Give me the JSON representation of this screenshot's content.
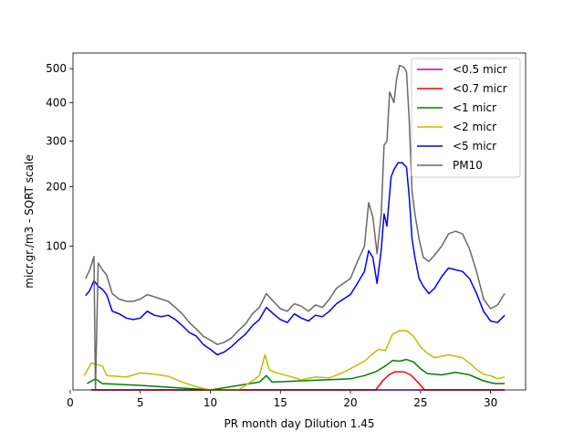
{
  "chart_data": {
    "type": "line",
    "title": "",
    "xlabel": "PR month day  Dilution 1.45",
    "ylabel": "micr.gr./m3 - SQRT scale",
    "y_scale": "sqrt",
    "xlim": [
      0.2,
      32.5
    ],
    "ylim": [
      0,
      550
    ],
    "x_ticks": [
      0,
      5,
      10,
      15,
      20,
      25,
      30
    ],
    "y_ticks": [
      100,
      200,
      300,
      400,
      500
    ],
    "grid": false,
    "legend_position": "top-right",
    "series": [
      {
        "name": "<0.5 micr",
        "color": "#bf00bf",
        "points": [
          [
            1.5,
            0
          ],
          [
            31,
            0
          ]
        ]
      },
      {
        "name": "<0.7 micr",
        "color": "#ff0000",
        "points": [
          [
            1.5,
            0
          ],
          [
            21.8,
            0
          ],
          [
            22.3,
            0.4
          ],
          [
            22.8,
            1.2
          ],
          [
            23.2,
            1.6
          ],
          [
            23.8,
            1.6
          ],
          [
            24.3,
            1.1
          ],
          [
            24.8,
            0.3
          ],
          [
            25.3,
            0
          ],
          [
            31,
            0
          ]
        ]
      },
      {
        "name": "<1 micr",
        "color": "#008000",
        "points": [
          [
            1.2,
            0.2
          ],
          [
            1.8,
            0.6
          ],
          [
            2.3,
            0.2
          ],
          [
            5,
            0.1
          ],
          [
            10,
            0
          ],
          [
            13.5,
            0.3
          ],
          [
            14,
            1
          ],
          [
            14.4,
            0.3
          ],
          [
            20,
            0.6
          ],
          [
            21,
            1
          ],
          [
            21.8,
            1.6
          ],
          [
            22.5,
            2.8
          ],
          [
            23,
            4.2
          ],
          [
            23.5,
            4
          ],
          [
            24,
            4.5
          ],
          [
            24.5,
            3.8
          ],
          [
            25,
            2.2
          ],
          [
            25.5,
            1.3
          ],
          [
            26.5,
            1.1
          ],
          [
            27.5,
            1.5
          ],
          [
            28.5,
            1.1
          ],
          [
            29.5,
            0.4
          ],
          [
            30.3,
            0.2
          ],
          [
            31,
            0.2
          ]
        ]
      },
      {
        "name": "<2 micr",
        "color": "#bfbf00",
        "points": [
          [
            1,
            1
          ],
          [
            1.5,
            3.5
          ],
          [
            2.3,
            2.8
          ],
          [
            2.6,
            1
          ],
          [
            4,
            0.8
          ],
          [
            5,
            1.4
          ],
          [
            6,
            1.2
          ],
          [
            7,
            0.9
          ],
          [
            8,
            0.3
          ],
          [
            9,
            0.05
          ],
          [
            10,
            0
          ],
          [
            11,
            0
          ],
          [
            12,
            0
          ],
          [
            13,
            0.4
          ],
          [
            13.5,
            1
          ],
          [
            13.9,
            6
          ],
          [
            14.2,
            2
          ],
          [
            14.6,
            1.5
          ],
          [
            15.5,
            1
          ],
          [
            16.5,
            0.5
          ],
          [
            17.5,
            0.8
          ],
          [
            18.5,
            0.7
          ],
          [
            19.5,
            1.5
          ],
          [
            20.5,
            3
          ],
          [
            21,
            4
          ],
          [
            21.5,
            6
          ],
          [
            22,
            8
          ],
          [
            22.5,
            7.5
          ],
          [
            23,
            15
          ],
          [
            23.5,
            17
          ],
          [
            24,
            17
          ],
          [
            24.5,
            14
          ],
          [
            25,
            9
          ],
          [
            25.5,
            6.5
          ],
          [
            26,
            5
          ],
          [
            26.5,
            5.5
          ],
          [
            27,
            6
          ],
          [
            27.5,
            5.5
          ],
          [
            28,
            5
          ],
          [
            28.5,
            3.5
          ],
          [
            29,
            2
          ],
          [
            29.5,
            1.2
          ],
          [
            30,
            1
          ],
          [
            30.5,
            0.6
          ],
          [
            31,
            0.8
          ]
        ]
      },
      {
        "name": "<5 micr",
        "color": "#0000ff",
        "points": [
          [
            1.1,
            43
          ],
          [
            1.4,
            48
          ],
          [
            1.7,
            58
          ],
          [
            2,
            52
          ],
          [
            2.3,
            49
          ],
          [
            2.6,
            44
          ],
          [
            3,
            30
          ],
          [
            3.5,
            28
          ],
          [
            4,
            25
          ],
          [
            4.5,
            24
          ],
          [
            5,
            25
          ],
          [
            5.5,
            30
          ],
          [
            6,
            27
          ],
          [
            6.5,
            26
          ],
          [
            7,
            27
          ],
          [
            7.5,
            24
          ],
          [
            8,
            20
          ],
          [
            8.5,
            16
          ],
          [
            9,
            14
          ],
          [
            9.5,
            10
          ],
          [
            10,
            8
          ],
          [
            10.5,
            6
          ],
          [
            11,
            7
          ],
          [
            11.5,
            9
          ],
          [
            12,
            12
          ],
          [
            12.5,
            15
          ],
          [
            13,
            20
          ],
          [
            13.5,
            24
          ],
          [
            14,
            33
          ],
          [
            14.5,
            28
          ],
          [
            15,
            24
          ],
          [
            15.5,
            22
          ],
          [
            16,
            28
          ],
          [
            16.5,
            25
          ],
          [
            17,
            23
          ],
          [
            17.5,
            27
          ],
          [
            18,
            26
          ],
          [
            18.5,
            30
          ],
          [
            19,
            36
          ],
          [
            19.5,
            40
          ],
          [
            20,
            44
          ],
          [
            20.5,
            55
          ],
          [
            21,
            68
          ],
          [
            21.3,
            94
          ],
          [
            21.6,
            85
          ],
          [
            21.9,
            55
          ],
          [
            22.2,
            95
          ],
          [
            22.4,
            150
          ],
          [
            22.6,
            130
          ],
          [
            22.9,
            220
          ],
          [
            23.1,
            235
          ],
          [
            23.4,
            250
          ],
          [
            23.7,
            250
          ],
          [
            24,
            240
          ],
          [
            24.2,
            180
          ],
          [
            24.4,
            110
          ],
          [
            24.6,
            85
          ],
          [
            24.9,
            60
          ],
          [
            25.2,
            52
          ],
          [
            25.6,
            45
          ],
          [
            26,
            50
          ],
          [
            26.5,
            62
          ],
          [
            27,
            72
          ],
          [
            27.5,
            70
          ],
          [
            28,
            68
          ],
          [
            28.5,
            60
          ],
          [
            29,
            45
          ],
          [
            29.5,
            30
          ],
          [
            30,
            23
          ],
          [
            30.5,
            22
          ],
          [
            31,
            27
          ]
        ]
      },
      {
        "name": "PM10",
        "color": "#696969",
        "points": [
          [
            1.1,
            60
          ],
          [
            1.4,
            70
          ],
          [
            1.7,
            86
          ],
          [
            1.8,
            0
          ],
          [
            2,
            78
          ],
          [
            2.3,
            70
          ],
          [
            2.6,
            64
          ],
          [
            3,
            45
          ],
          [
            3.5,
            40
          ],
          [
            4,
            38
          ],
          [
            4.5,
            38
          ],
          [
            5,
            40
          ],
          [
            5.5,
            44
          ],
          [
            6,
            42
          ],
          [
            6.5,
            40
          ],
          [
            7,
            38
          ],
          [
            7.5,
            33
          ],
          [
            8,
            28
          ],
          [
            8.5,
            22
          ],
          [
            9,
            18
          ],
          [
            9.5,
            14
          ],
          [
            10,
            12
          ],
          [
            10.5,
            10
          ],
          [
            11,
            11
          ],
          [
            11.5,
            13
          ],
          [
            12,
            17
          ],
          [
            12.5,
            21
          ],
          [
            13,
            28
          ],
          [
            13.5,
            33
          ],
          [
            14,
            45
          ],
          [
            14.5,
            38
          ],
          [
            15,
            32
          ],
          [
            15.5,
            30
          ],
          [
            16,
            36
          ],
          [
            16.5,
            34
          ],
          [
            17,
            30
          ],
          [
            17.5,
            35
          ],
          [
            18,
            33
          ],
          [
            18.5,
            40
          ],
          [
            19,
            50
          ],
          [
            19.5,
            55
          ],
          [
            20,
            60
          ],
          [
            20.5,
            80
          ],
          [
            21,
            100
          ],
          [
            21.3,
            170
          ],
          [
            21.6,
            145
          ],
          [
            21.9,
            90
          ],
          [
            22.2,
            150
          ],
          [
            22.4,
            290
          ],
          [
            22.6,
            300
          ],
          [
            22.8,
            430
          ],
          [
            23.1,
            400
          ],
          [
            23.3,
            470
          ],
          [
            23.5,
            510
          ],
          [
            23.8,
            505
          ],
          [
            24,
            490
          ],
          [
            24.2,
            350
          ],
          [
            24.4,
            190
          ],
          [
            24.6,
            150
          ],
          [
            24.9,
            110
          ],
          [
            25.2,
            85
          ],
          [
            25.6,
            80
          ],
          [
            26,
            88
          ],
          [
            26.5,
            100
          ],
          [
            27,
            118
          ],
          [
            27.5,
            122
          ],
          [
            28,
            118
          ],
          [
            28.5,
            96
          ],
          [
            29,
            68
          ],
          [
            29.5,
            40
          ],
          [
            30,
            32
          ],
          [
            30.5,
            35
          ],
          [
            31,
            45
          ]
        ]
      }
    ]
  }
}
